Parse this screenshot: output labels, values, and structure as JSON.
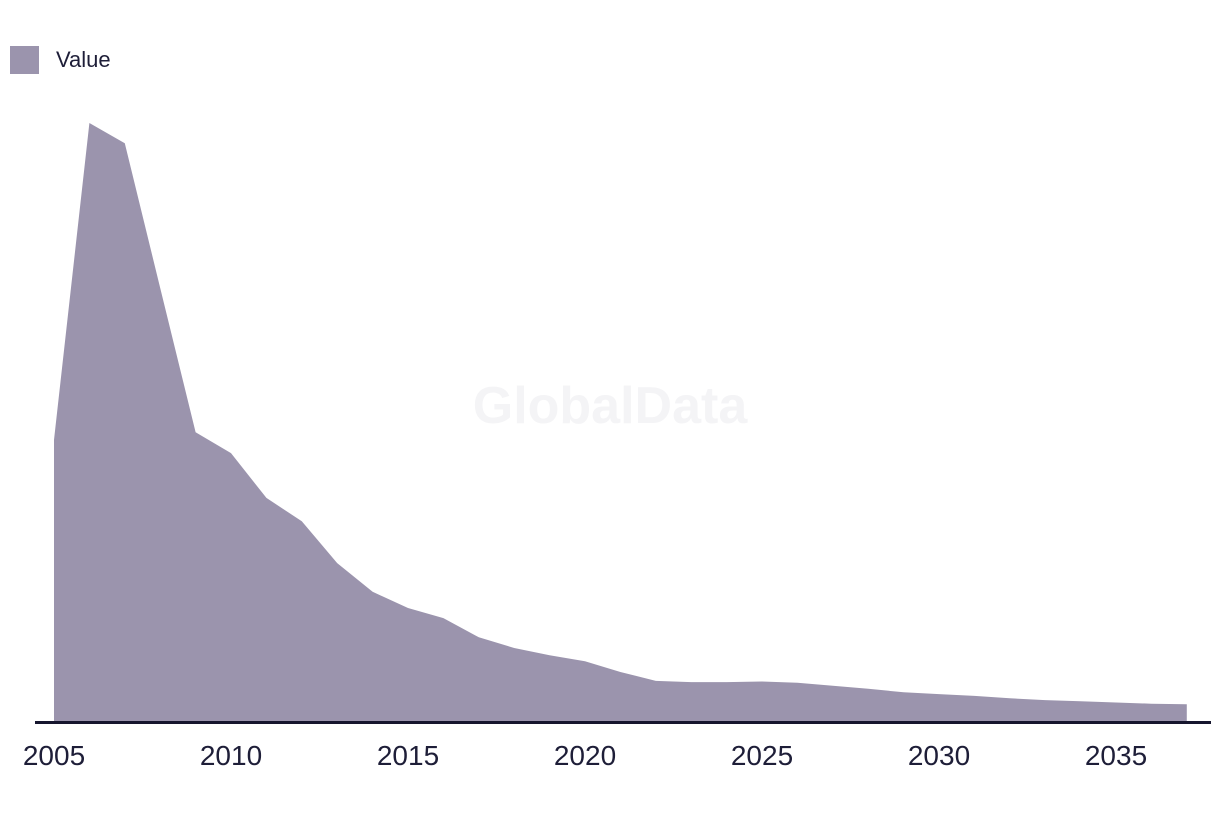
{
  "legend": {
    "items": [
      {
        "label": "Value",
        "swatch_color": "#9B94AD"
      }
    ]
  },
  "watermark": {
    "text": "GlobalData"
  },
  "colors": {
    "series_fill": "#9B94AD",
    "axis_line": "#16162E",
    "tick_text": "#1E1E38",
    "watermark_text": "#F4F4F6",
    "background": "#FFFFFF"
  },
  "chart_data": {
    "type": "area",
    "title": "",
    "xlabel": "",
    "ylabel": "",
    "legend_position": "top-left",
    "grid": false,
    "y_axis_shown": false,
    "value_scale": "relative units, peak year 2006 = 100 (chart displays no y-axis)",
    "ylim": [
      0,
      107
    ],
    "xlim": [
      2005,
      2037
    ],
    "series_name": "Value",
    "x": [
      2005,
      2006,
      2007,
      2008,
      2009,
      2010,
      2011,
      2012,
      2013,
      2014,
      2015,
      2016,
      2017,
      2018,
      2019,
      2020,
      2021,
      2022,
      2023,
      2024,
      2025,
      2026,
      2027,
      2028,
      2029,
      2030,
      2031,
      2032,
      2033,
      2034,
      2035,
      2036,
      2037
    ],
    "values": [
      47.0,
      100.0,
      96.6,
      72.4,
      48.3,
      44.8,
      37.3,
      33.4,
      26.4,
      21.6,
      18.9,
      17.2,
      14.0,
      12.2,
      11.0,
      10.0,
      8.2,
      6.7,
      6.5,
      6.5,
      6.6,
      6.4,
      5.9,
      5.4,
      4.8,
      4.5,
      4.2,
      3.8,
      3.5,
      3.3,
      3.1,
      2.9,
      2.8
    ],
    "xticks": [
      "2005",
      "2010",
      "2015",
      "2020",
      "2025",
      "2030",
      "2035"
    ]
  }
}
